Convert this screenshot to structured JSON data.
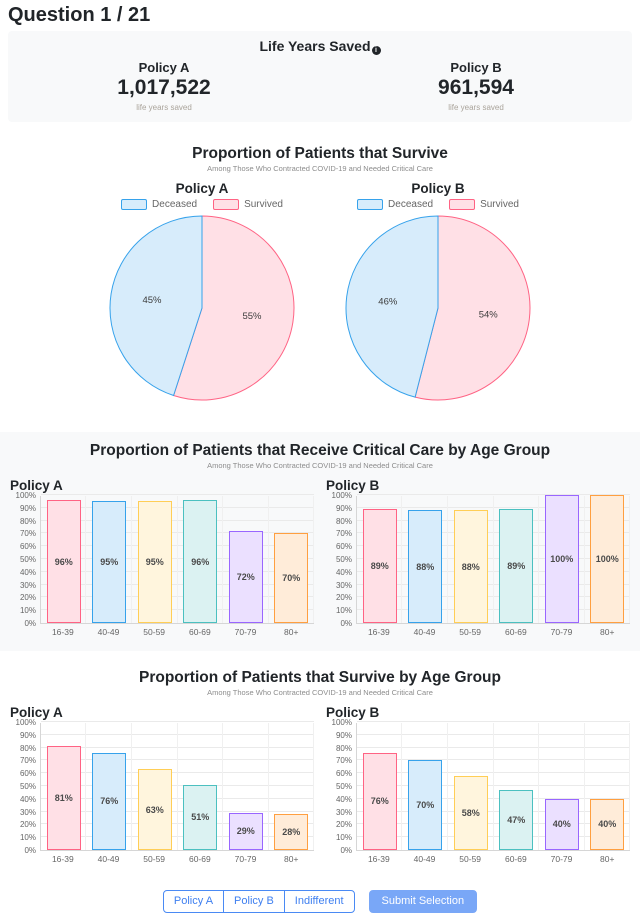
{
  "header": {
    "title": "Question 1 / 21"
  },
  "life_years": {
    "title": "Life Years Saved",
    "info_icon": "i",
    "policies": [
      {
        "name": "Policy A",
        "value": "1,017,522",
        "unit": "life years saved"
      },
      {
        "name": "Policy B",
        "value": "961,594",
        "unit": "life years saved"
      }
    ]
  },
  "colors": {
    "palette_borders": [
      "#FF6384",
      "#36A2EB",
      "#FFCE56",
      "#4BC0C0",
      "#9966FF",
      "#FF9F40"
    ],
    "palette_fills": [
      "#FFE0E6",
      "#D7ECFB",
      "#FFF5DD",
      "#DBF2F2",
      "#EBE0FF",
      "#FFECD9"
    ],
    "deceased_border": "#36A2EB",
    "deceased_fill": "#D7ECFB",
    "survived_border": "#FF6384",
    "survived_fill": "#FFE0E6",
    "accent_blue": "#4a8af4",
    "submit_blue": "#79a7f7",
    "panel_gray": "#f8f9fa"
  },
  "chart_data": [
    {
      "type": "pie",
      "title": "Proportion of Patients that Survive",
      "subtitle": "Among Those Who Contracted COVID-19 and Needed Critical Care",
      "legend": [
        "Deceased",
        "Survived"
      ],
      "charts": [
        {
          "name": "Policy A",
          "slices": [
            {
              "label": "Survived",
              "value": 55
            },
            {
              "label": "Deceased",
              "value": 45
            }
          ]
        },
        {
          "name": "Policy B",
          "slices": [
            {
              "label": "Survived",
              "value": 54
            },
            {
              "label": "Deceased",
              "value": 46
            }
          ]
        }
      ]
    },
    {
      "type": "bar",
      "title": "Proportion of Patients that Receive Critical Care by Age Group",
      "subtitle": "Among Those Who Contracted COVID-19 and Needed Critical Care",
      "categories": [
        "16-39",
        "40-49",
        "50-59",
        "60-69",
        "70-79",
        "80+"
      ],
      "ylabel": "",
      "ylim": [
        0,
        100
      ],
      "ytick_step": 10,
      "grid": true,
      "series": [
        {
          "name": "Policy A",
          "values": [
            96,
            95,
            95,
            96,
            72,
            70
          ]
        },
        {
          "name": "Policy B",
          "values": [
            89,
            88,
            88,
            89,
            100,
            100
          ]
        }
      ]
    },
    {
      "type": "bar",
      "title": "Proportion of Patients that Survive by Age Group",
      "subtitle": "Among Those Who Contracted COVID-19 and Needed Critical Care",
      "categories": [
        "16-39",
        "40-49",
        "50-59",
        "60-69",
        "70-79",
        "80+"
      ],
      "ylabel": "",
      "ylim": [
        0,
        100
      ],
      "ytick_step": 10,
      "grid": true,
      "series": [
        {
          "name": "Policy A",
          "values": [
            81,
            76,
            63,
            51,
            29,
            28
          ]
        },
        {
          "name": "Policy B",
          "values": [
            76,
            70,
            58,
            47,
            40,
            40
          ]
        }
      ]
    }
  ],
  "footer": {
    "choice_buttons": [
      "Policy A",
      "Policy B",
      "Indifferent"
    ],
    "submit_label": "Submit Selection"
  }
}
